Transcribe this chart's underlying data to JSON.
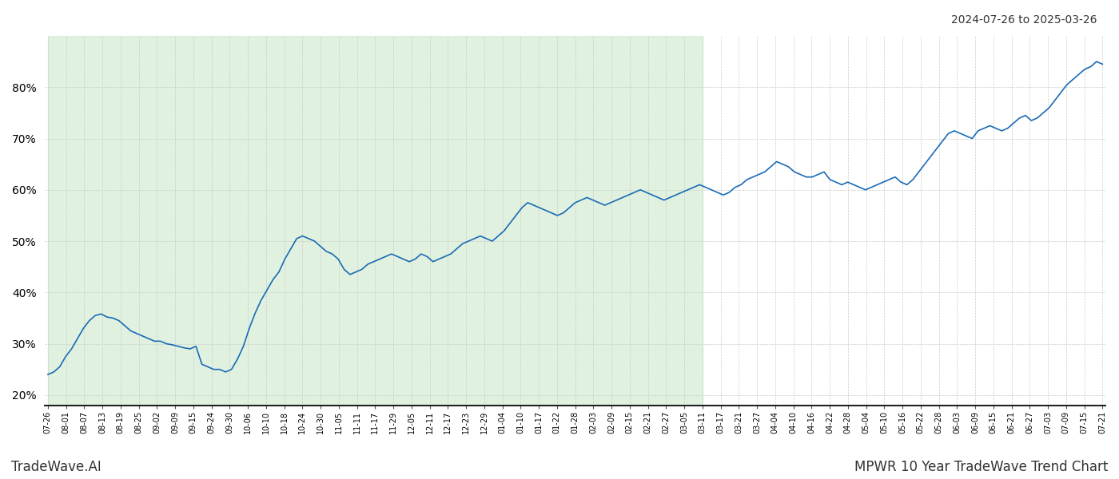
{
  "title_top_right": "2024-07-26 to 2025-03-26",
  "title_bottom_left": "TradeWave.AI",
  "title_bottom_right": "MPWR 10 Year TradeWave Trend Chart",
  "line_color": "#1a6bb5",
  "line_width": 1.2,
  "shade_color": "#d4ecd4",
  "shade_alpha": 0.7,
  "bg_color": "#ffffff",
  "grid_color": "#cccccc",
  "ylim": [
    18,
    90
  ],
  "yticks": [
    20,
    30,
    40,
    50,
    60,
    70,
    80
  ],
  "ytick_labels": [
    "20%",
    "30%",
    "40%",
    "50%",
    "60%",
    "70%",
    "80%"
  ],
  "x_labels": [
    "07-26",
    "08-01",
    "08-07",
    "08-13",
    "08-19",
    "08-25",
    "09-02",
    "09-09",
    "09-15",
    "09-24",
    "09-30",
    "10-06",
    "10-10",
    "10-18",
    "10-24",
    "10-30",
    "11-05",
    "11-11",
    "11-17",
    "11-29",
    "12-05",
    "12-11",
    "12-17",
    "12-23",
    "12-29",
    "01-04",
    "01-10",
    "01-17",
    "01-22",
    "01-28",
    "02-03",
    "02-09",
    "02-15",
    "02-21",
    "02-27",
    "03-05",
    "03-11",
    "03-17",
    "03-21",
    "03-27",
    "04-04",
    "04-10",
    "04-16",
    "04-22",
    "04-28",
    "05-04",
    "05-10",
    "05-16",
    "05-22",
    "05-28",
    "06-03",
    "06-09",
    "06-15",
    "06-21",
    "06-27",
    "07-03",
    "07-09",
    "07-15",
    "07-21"
  ],
  "shade_end_label": "03-11",
  "values": [
    24.0,
    24.5,
    25.5,
    27.5,
    29.0,
    31.0,
    33.0,
    34.5,
    35.5,
    35.8,
    35.2,
    35.0,
    34.5,
    33.5,
    32.5,
    32.0,
    31.5,
    31.0,
    30.5,
    30.5,
    30.0,
    29.8,
    29.5,
    29.2,
    29.0,
    29.5,
    26.0,
    25.5,
    25.0,
    25.0,
    24.5,
    25.0,
    27.0,
    29.5,
    33.0,
    36.0,
    38.5,
    40.5,
    42.5,
    44.0,
    46.5,
    48.5,
    50.5,
    51.0,
    50.5,
    50.0,
    49.0,
    48.0,
    47.5,
    46.5,
    44.5,
    43.5,
    44.0,
    44.5,
    45.5,
    46.0,
    46.5,
    47.0,
    47.5,
    47.0,
    46.5,
    46.0,
    46.5,
    47.5,
    47.0,
    46.0,
    46.5,
    47.0,
    47.5,
    48.5,
    49.5,
    50.0,
    50.5,
    51.0,
    50.5,
    50.0,
    51.0,
    52.0,
    53.5,
    55.0,
    56.5,
    57.5,
    57.0,
    56.5,
    56.0,
    55.5,
    55.0,
    55.5,
    56.5,
    57.5,
    58.0,
    58.5,
    58.0,
    57.5,
    57.0,
    57.5,
    58.0,
    58.5,
    59.0,
    59.5,
    60.0,
    59.5,
    59.0,
    58.5,
    58.0,
    58.5,
    59.0,
    59.5,
    60.0,
    60.5,
    61.0,
    60.5,
    60.0,
    59.5,
    59.0,
    59.5,
    60.5,
    61.0,
    62.0,
    62.5,
    63.0,
    63.5,
    64.5,
    65.5,
    65.0,
    64.5,
    63.5,
    63.0,
    62.5,
    62.5,
    63.0,
    63.5,
    62.0,
    61.5,
    61.0,
    61.5,
    61.0,
    60.5,
    60.0,
    60.5,
    61.0,
    61.5,
    62.0,
    62.5,
    61.5,
    61.0,
    62.0,
    63.5,
    65.0,
    66.5,
    68.0,
    69.5,
    71.0,
    71.5,
    71.0,
    70.5,
    70.0,
    71.5,
    72.0,
    72.5,
    72.0,
    71.5,
    72.0,
    73.0,
    74.0,
    74.5,
    73.5,
    74.0,
    75.0,
    76.0,
    77.5,
    79.0,
    80.5,
    81.5,
    82.5,
    83.5,
    84.0,
    85.0,
    84.5
  ]
}
